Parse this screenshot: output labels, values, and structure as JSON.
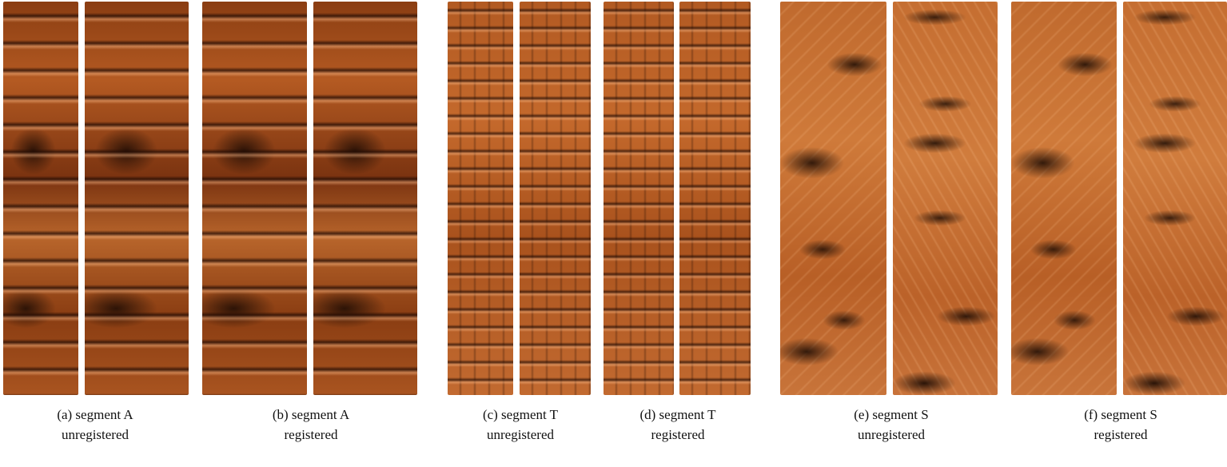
{
  "figure": {
    "panels": [
      {
        "segment": "A",
        "state": "unregistered"
      },
      {
        "segment": "A",
        "state": "registered"
      },
      {
        "segment": "T",
        "state": "unregistered"
      },
      {
        "segment": "T",
        "state": "registered"
      },
      {
        "segment": "S",
        "state": "unregistered"
      },
      {
        "segment": "S",
        "state": "registered"
      }
    ],
    "captions": [
      {
        "line1": "(a) segment A",
        "line2": "unregistered"
      },
      {
        "line1": "(b) segment A",
        "line2": "registered"
      },
      {
        "line1": "(c) segment T",
        "line2": "unregistered"
      },
      {
        "line1": "(d) segment T",
        "line2": "registered"
      },
      {
        "line1": "(e) segment S",
        "line2": "unregistered"
      },
      {
        "line1": "(f) segment S",
        "line2": "registered"
      }
    ],
    "texture_color": "#b45a22"
  }
}
